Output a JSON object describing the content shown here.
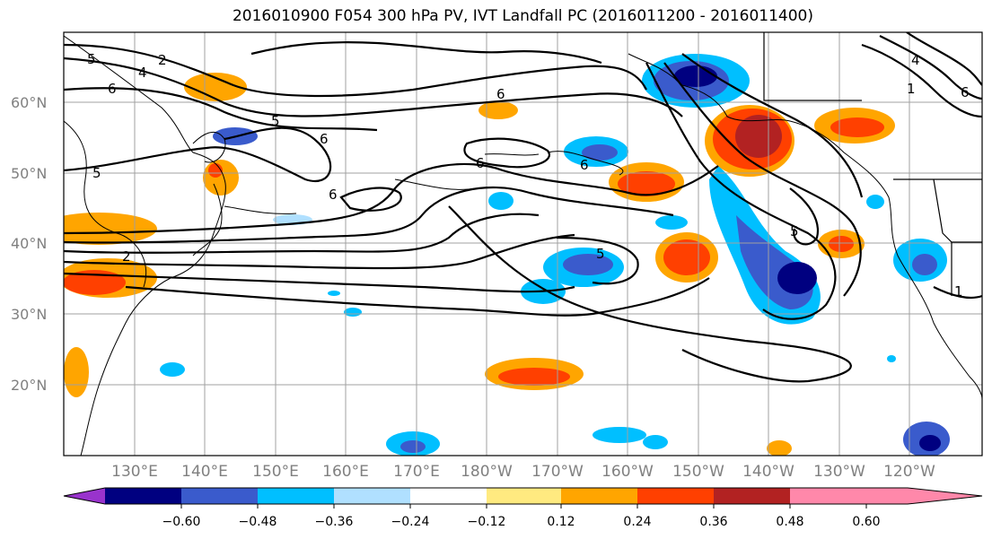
{
  "title": "2016010900 F054 300 hPa PV, IVT Landfall PC (2016011200 - 2016011400)",
  "lat_labels": [
    "20°N",
    "30°N",
    "40°N",
    "50°N",
    "60°N"
  ],
  "lon_labels": [
    "130°E",
    "140°E",
    "150°E",
    "160°E",
    "170°E",
    "180°W",
    "170°W",
    "160°W",
    "150°W",
    "140°W",
    "130°W",
    "120°W"
  ],
  "colorbar": {
    "colors": [
      "#9933cc",
      "#000080",
      "#3a5bcc",
      "#00bfff",
      "#b0e0ff",
      "#ffffff",
      "#ffea80",
      "#ffa500",
      "#ff4000",
      "#b22222",
      "#ff88aa"
    ],
    "ticks": [
      "−0.60",
      "−0.48",
      "−0.36",
      "−0.24",
      "−0.12",
      "0.12",
      "0.24",
      "0.36",
      "0.48",
      "0.60"
    ]
  },
  "contour_labels": [
    "5",
    "6",
    "4",
    "2",
    "5",
    "6",
    "6",
    "6",
    "6",
    "6",
    "5",
    "5",
    "5",
    "2",
    "4",
    "6",
    "1",
    "1"
  ]
}
